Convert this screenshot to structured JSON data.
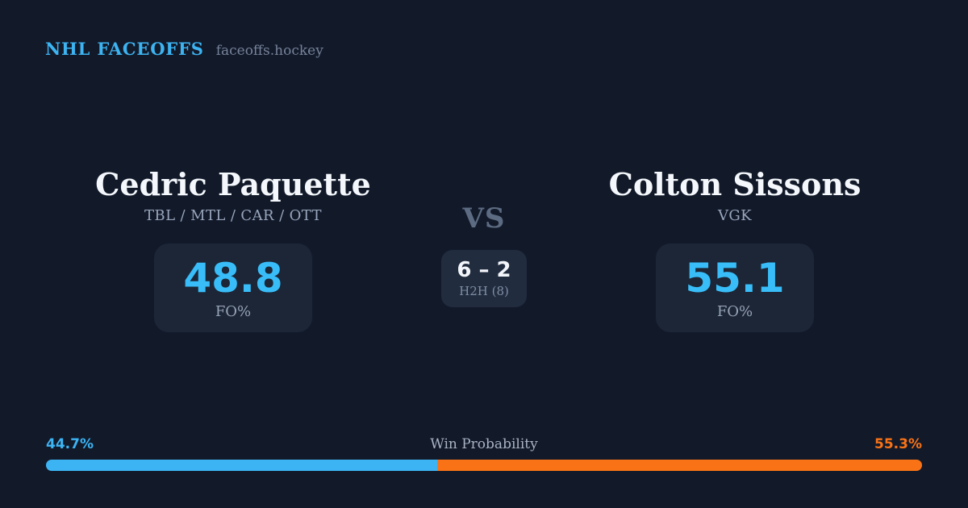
{
  "header": {
    "brand": "NHL FACEOFFS",
    "site": "faceoffs.hockey"
  },
  "matchup": {
    "left": {
      "name": "Cedric Paquette",
      "teams": "TBL / MTL / CAR / OTT",
      "fo_value": "48.8",
      "fo_label": "FO%"
    },
    "center": {
      "vs_label": "VS",
      "h2h_score": "6 – 2",
      "h2h_label": "H2H (8)"
    },
    "right": {
      "name": "Colton Sissons",
      "teams": "VGK",
      "fo_value": "55.1",
      "fo_label": "FO%"
    }
  },
  "win_probability": {
    "title": "Win Probability",
    "left_pct_label": "44.7%",
    "right_pct_label": "55.3%",
    "left_value": 44.7,
    "right_value": 55.3
  },
  "colors": {
    "background": "#121a2a",
    "card": "#1c2637",
    "h2h_card": "#212c3f",
    "accent_blue": "#3cb4f4",
    "stat_blue": "#38bdf8",
    "accent_orange": "#f97316",
    "name_white": "#f4f7fb",
    "muted_gray": "#98a5bb"
  }
}
